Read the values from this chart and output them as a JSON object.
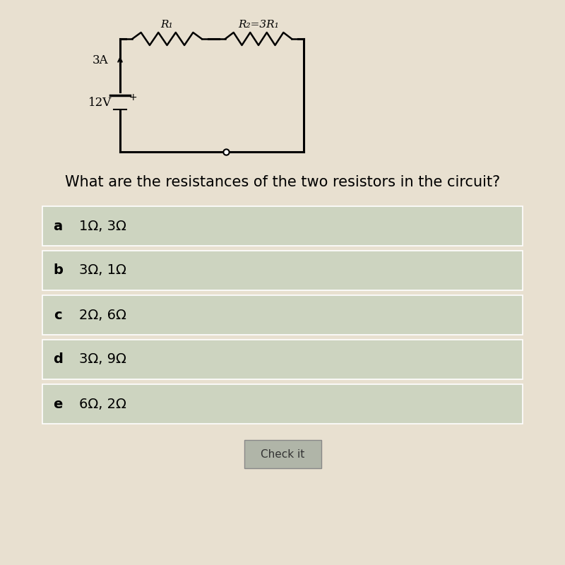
{
  "background_color": "#e8e0d0",
  "question": "What are the resistances of the two resistors in the circuit?",
  "question_fontsize": 15,
  "choices": [
    {
      "label": "a",
      "text": "1Ω, 3Ω"
    },
    {
      "label": "b",
      "text": "3Ω, 1Ω"
    },
    {
      "label": "c",
      "text": "2Ω, 6Ω"
    },
    {
      "label": "d",
      "text": "3Ω, 9Ω"
    },
    {
      "label": "e",
      "text": "6Ω, 2Ω"
    }
  ],
  "choice_bg_color": "#cdd4c0",
  "choice_fontsize": 14,
  "button_text": "Check it",
  "button_bg": "#b0b5a8",
  "button_fontsize": 11,
  "circuit": {
    "voltage": "12V",
    "current": "3A",
    "r1_label": "R₁",
    "r2_label": "R₂=3R₁"
  }
}
